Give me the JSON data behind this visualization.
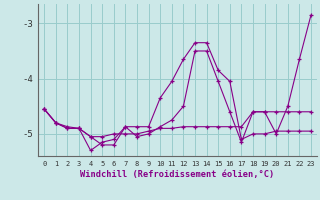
{
  "xlabel": "Windchill (Refroidissement éolien,°C)",
  "background_color": "#cce8e8",
  "grid_color": "#99cccc",
  "line_color": "#880088",
  "xlim": [
    -0.5,
    23.5
  ],
  "ylim": [
    -5.4,
    -2.65
  ],
  "yticks": [
    -5,
    -4,
    -3
  ],
  "xticks": [
    0,
    1,
    2,
    3,
    4,
    5,
    6,
    7,
    8,
    9,
    10,
    11,
    12,
    13,
    14,
    15,
    16,
    17,
    18,
    19,
    20,
    21,
    22,
    23
  ],
  "line1_x": [
    0,
    1,
    2,
    3,
    4,
    5,
    6,
    7,
    8,
    9,
    10,
    11,
    12,
    13,
    14,
    15,
    16,
    17,
    18,
    19,
    20,
    21,
    22,
    23
  ],
  "line1_y": [
    -4.55,
    -4.8,
    -4.9,
    -4.9,
    -5.05,
    -5.05,
    -5.0,
    -5.0,
    -5.0,
    -4.95,
    -4.9,
    -4.9,
    -4.87,
    -4.87,
    -4.87,
    -4.87,
    -4.87,
    -4.87,
    -4.6,
    -4.6,
    -4.6,
    -4.6,
    -4.6,
    -4.6
  ],
  "line2_x": [
    0,
    1,
    2,
    3,
    4,
    5,
    6,
    7,
    8,
    9,
    10,
    11,
    12,
    13,
    14,
    15,
    16,
    17,
    18,
    19,
    20,
    21,
    22,
    23
  ],
  "line2_y": [
    -4.55,
    -4.8,
    -4.9,
    -4.9,
    -5.05,
    -5.2,
    -5.2,
    -4.87,
    -4.87,
    -4.87,
    -4.35,
    -4.05,
    -3.65,
    -3.35,
    -3.35,
    -3.85,
    -4.05,
    -5.1,
    -5.0,
    -5.0,
    -4.95,
    -4.95,
    -4.95,
    -4.95
  ],
  "line3_x": [
    0,
    1,
    2,
    3,
    4,
    5,
    6,
    7,
    8,
    9,
    10,
    11,
    12,
    13,
    14,
    15,
    16,
    17,
    18,
    19,
    20,
    21,
    22,
    23
  ],
  "line3_y": [
    -4.55,
    -4.8,
    -4.87,
    -4.9,
    -5.3,
    -5.15,
    -5.1,
    -4.87,
    -5.05,
    -5.0,
    -4.87,
    -4.75,
    -4.5,
    -3.5,
    -3.5,
    -4.05,
    -4.6,
    -5.15,
    -4.6,
    -4.6,
    -5.0,
    -4.5,
    -3.65,
    -2.85
  ]
}
